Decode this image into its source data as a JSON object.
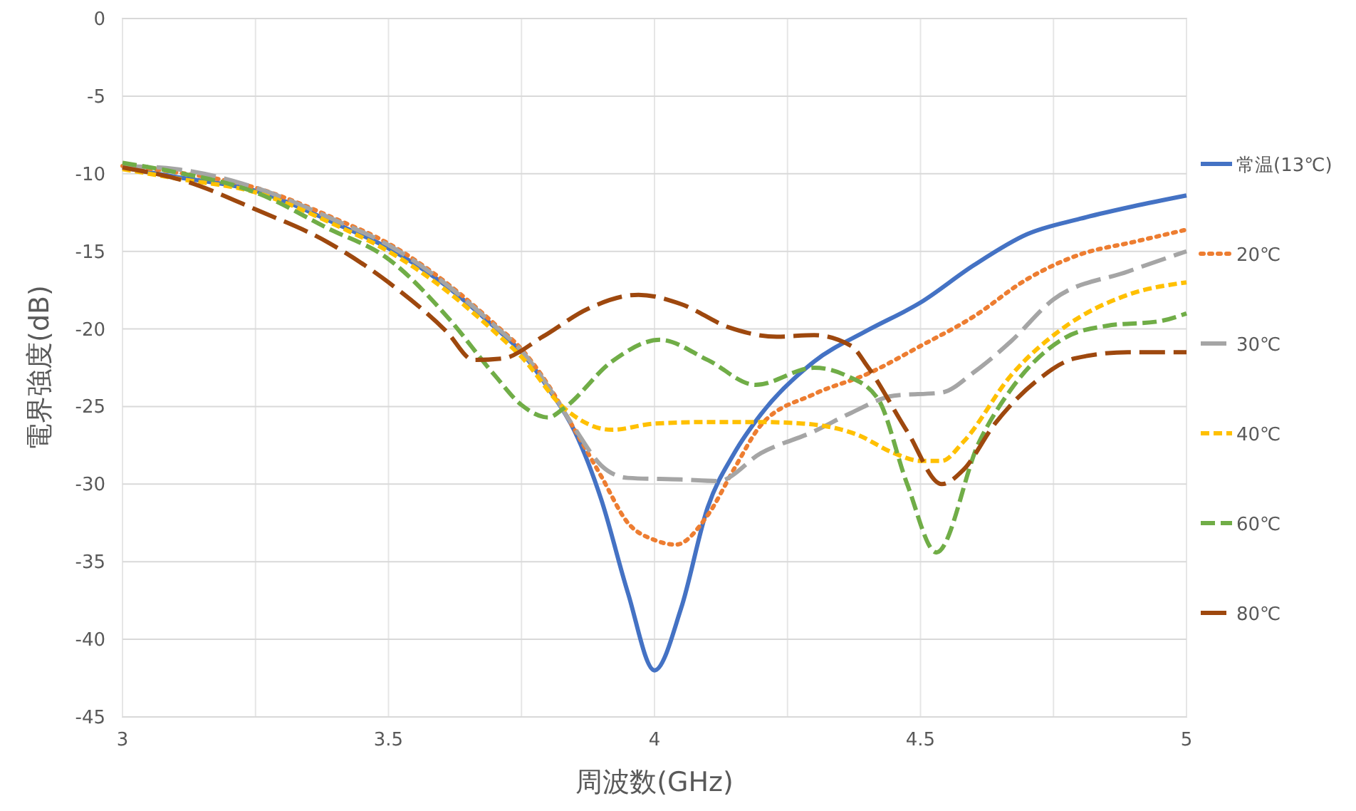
{
  "chart_data": {
    "type": "line",
    "xlabel": "周波数(GHz)",
    "ylabel": "電界強度(dB)",
    "xlim": [
      3,
      5
    ],
    "ylim": [
      -45,
      0
    ],
    "xticks": [
      3,
      {
        "value": 3.25,
        "label": null
      },
      3.5,
      {
        "value": 3.75,
        "label": null
      },
      4,
      {
        "value": 4.25,
        "label": null
      },
      4.5,
      {
        "value": 4.75,
        "label": null
      },
      5
    ],
    "yticks": [
      0,
      -5,
      -10,
      -15,
      -20,
      -25,
      -30,
      -35,
      -40,
      -45
    ],
    "grid": true,
    "legend": "right",
    "marker": "none",
    "series": [
      {
        "name": "常温(13℃)",
        "color": "#4472c4",
        "line_style": "solid",
        "x": [
          3,
          3.1,
          3.25,
          3.4,
          3.5,
          3.6,
          3.7,
          3.75,
          3.8,
          3.85,
          3.9,
          3.95,
          4.0,
          4.05,
          4.1,
          4.15,
          4.2,
          4.3,
          4.4,
          4.5,
          4.6,
          4.7,
          4.8,
          4.9,
          5
        ],
        "values": [
          -9.6,
          -10.2,
          -11.1,
          -13.2,
          -14.8,
          -17.0,
          -19.9,
          -21.5,
          -23.8,
          -26.6,
          -31,
          -37,
          -42,
          -38,
          -31.5,
          -28,
          -25.5,
          -22.1,
          -20.1,
          -18.3,
          -15.9,
          -13.9,
          -12.9,
          -12.1,
          -11.4
        ]
      },
      {
        "name": "20℃",
        "color": "#ed7d31",
        "line_style": "dotted",
        "x": [
          3,
          3.1,
          3.25,
          3.4,
          3.5,
          3.6,
          3.7,
          3.75,
          3.8,
          3.85,
          3.9,
          3.95,
          4.0,
          4.04,
          4.1,
          4.15,
          4.2,
          4.3,
          4.4,
          4.5,
          4.6,
          4.7,
          4.8,
          4.9,
          5
        ],
        "values": [
          -9.5,
          -9.9,
          -10.9,
          -12.9,
          -14.5,
          -16.8,
          -19.7,
          -21.3,
          -23.6,
          -26.5,
          -29.5,
          -32.5,
          -33.6,
          -33.9,
          -32,
          -29,
          -26.2,
          -24.2,
          -22.9,
          -21.1,
          -19.2,
          -16.8,
          -15.2,
          -14.4,
          -13.6
        ]
      },
      {
        "name": "30℃",
        "color": "#a5a5a5",
        "line_style": "dashed",
        "x": [
          3,
          3.1,
          3.25,
          3.4,
          3.5,
          3.6,
          3.7,
          3.75,
          3.8,
          3.85,
          3.9,
          3.95,
          4.05,
          4.12,
          4.2,
          4.3,
          4.37,
          4.45,
          4.54,
          4.6,
          4.67,
          4.75,
          4.89,
          5
        ],
        "values": [
          -9.5,
          -9.7,
          -10.9,
          -13.0,
          -14.6,
          -16.9,
          -19.8,
          -21.4,
          -23.7,
          -26.4,
          -28.8,
          -29.6,
          -29.7,
          -29.8,
          -28,
          -26.6,
          -25.4,
          -24.3,
          -24.1,
          -22.8,
          -20.8,
          -18.1,
          -16.3,
          -15.0
        ]
      },
      {
        "name": "40℃",
        "color": "#ffc000",
        "line_style": "dashed",
        "x": [
          3,
          3.1,
          3.25,
          3.4,
          3.5,
          3.6,
          3.7,
          3.75,
          3.83,
          3.92,
          4.0,
          4.1,
          4.2,
          4.28,
          4.38,
          4.45,
          4.5,
          4.54,
          4.58,
          4.67,
          4.77,
          4.89,
          5
        ],
        "values": [
          -9.7,
          -10.3,
          -11.2,
          -13.3,
          -15.0,
          -17.3,
          -20.2,
          -21.8,
          -25.1,
          -26.5,
          -26.1,
          -26.0,
          -26.0,
          -26.1,
          -26.8,
          -28.0,
          -28.5,
          -28.5,
          -27.3,
          -23.0,
          -19.9,
          -17.8,
          -17.0
        ]
      },
      {
        "name": "60℃",
        "color": "#70ad47",
        "line_style": "dashed",
        "x": [
          3,
          3.1,
          3.25,
          3.385,
          3.5,
          3.61,
          3.7,
          3.75,
          3.8,
          3.83,
          3.92,
          4.01,
          4.1,
          4.19,
          4.3,
          4.36,
          4.42,
          4.475,
          4.53,
          4.61,
          4.67,
          4.77,
          4.85,
          4.95,
          5
        ],
        "values": [
          -9.3,
          -9.9,
          -11.2,
          -13.5,
          -15.5,
          -19.2,
          -23,
          -24.9,
          -25.7,
          -25.1,
          -22.1,
          -20.7,
          -22,
          -23.6,
          -22.5,
          -23,
          -24.5,
          -30,
          -34.4,
          -27.3,
          -23.9,
          -20.6,
          -19.8,
          -19.5,
          -19.0
        ]
      },
      {
        "name": "80℃",
        "color": "#9e480e",
        "line_style": "dashed",
        "x": [
          3,
          3.12,
          3.25,
          3.385,
          3.5,
          3.61,
          3.66,
          3.715,
          3.79,
          3.875,
          3.97,
          4.05,
          4.14,
          4.23,
          4.3,
          4.37,
          4.4,
          4.475,
          4.54,
          4.58,
          4.64,
          4.72,
          4.79,
          4.89,
          5
        ],
        "values": [
          -9.6,
          -10.5,
          -12.3,
          -14.4,
          -17.0,
          -20.2,
          -22.0,
          -21.9,
          -20.5,
          -18.7,
          -17.8,
          -18.4,
          -19.9,
          -20.5,
          -20.4,
          -21.1,
          -22.4,
          -26.6,
          -30,
          -29.1,
          -26.1,
          -23.3,
          -21.9,
          -21.5,
          -21.5
        ]
      }
    ]
  }
}
